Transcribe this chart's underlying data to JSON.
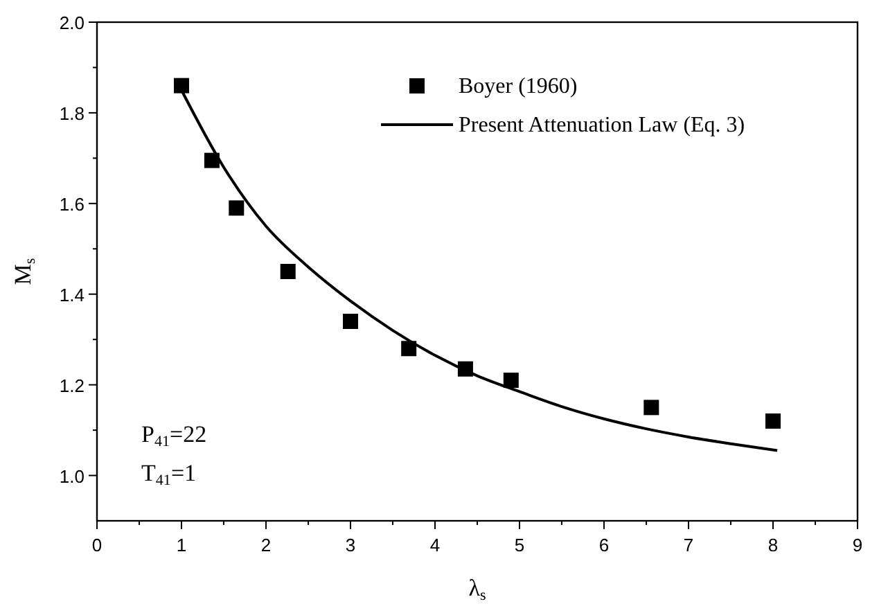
{
  "chart_data": {
    "type": "scatter",
    "xlabel": "λ$_{s}$",
    "ylabel": "M$_{s}$",
    "xlim": [
      0,
      9
    ],
    "ylim": [
      0.9,
      2.0
    ],
    "xticks": [
      0,
      {
        "value": 0.5,
        "label": null
      },
      1,
      {
        "value": 1.5,
        "label": null
      },
      2,
      {
        "value": 2.5,
        "label": null
      },
      3,
      {
        "value": 3.5,
        "label": null
      },
      4,
      {
        "value": 4.5,
        "label": null
      },
      5,
      {
        "value": 5.5,
        "label": null
      },
      6,
      {
        "value": 6.5,
        "label": null
      },
      7,
      {
        "value": 7.5,
        "label": null
      },
      8,
      {
        "value": 8.5,
        "label": null
      },
      9
    ],
    "yticks": [
      {
        "value": 1.0,
        "label": "1.0"
      },
      {
        "value": 1.1,
        "label": null
      },
      1.2,
      {
        "value": 1.3,
        "label": null
      },
      1.4,
      {
        "value": 1.5,
        "label": null
      },
      1.6,
      {
        "value": 1.7,
        "label": null
      },
      1.8,
      {
        "value": 1.9,
        "label": null
      },
      {
        "value": 2.0,
        "label": "2.0"
      }
    ],
    "grid": false,
    "legend": "top right",
    "series": [
      {
        "name": "Boyer (1960)",
        "marker": "square",
        "color": "#000000",
        "x": [
          1,
          1.36,
          1.65,
          2.26,
          3,
          3.69,
          4.36,
          4.9,
          6.56,
          8
        ],
        "values": [
          1.86,
          1.695,
          1.59,
          1.45,
          1.34,
          1.28,
          1.235,
          1.21,
          1.15,
          1.12
        ]
      },
      {
        "name": "Present Attenuation Law (Eq. 3)",
        "type": "line",
        "marker": "none",
        "line_style": "solid",
        "color": "#000000",
        "x": [
          1,
          1.5,
          2,
          2.5,
          3,
          3.5,
          4,
          4.5,
          5,
          5.5,
          6,
          6.5,
          7,
          7.5,
          8.05
        ],
        "values": [
          1.85,
          1.68,
          1.55,
          1.46,
          1.385,
          1.32,
          1.265,
          1.22,
          1.185,
          1.152,
          1.125,
          1.103,
          1.085,
          1.07,
          1.055
        ]
      }
    ],
    "annotations": [
      "P$_{41}$=22",
      "T$_{41}$=1"
    ]
  }
}
